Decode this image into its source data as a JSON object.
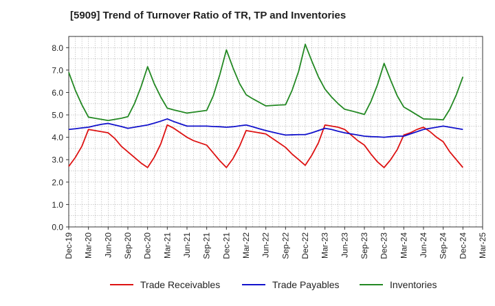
{
  "chart_data": {
    "type": "line",
    "title": "[5909]  Trend of Turnover Ratio of TR, TP and Inventories",
    "xlabel": "",
    "ylabel": "",
    "ylim": [
      0,
      8.5
    ],
    "yticks": [
      "0.0",
      "1.0",
      "2.0",
      "3.0",
      "4.0",
      "5.0",
      "6.0",
      "7.0",
      "8.0"
    ],
    "x_ticks": [
      "Dec-19",
      "Mar-20",
      "Jun-20",
      "Sep-20",
      "Dec-20",
      "Mar-21",
      "Jun-21",
      "Sep-21",
      "Dec-21",
      "Mar-22",
      "Jun-22",
      "Sep-22",
      "Dec-22",
      "Mar-23",
      "Jun-23",
      "Sep-23",
      "Dec-23",
      "Mar-24",
      "Jun-24",
      "Sep-24",
      "Dec-24",
      "Mar-25"
    ],
    "x": [
      "Dec-19",
      "Jan-20",
      "Feb-20",
      "Mar-20",
      "Apr-20",
      "May-20",
      "Jun-20",
      "Jul-20",
      "Aug-20",
      "Sep-20",
      "Oct-20",
      "Nov-20",
      "Dec-20",
      "Jan-21",
      "Feb-21",
      "Mar-21",
      "Apr-21",
      "May-21",
      "Jun-21",
      "Jul-21",
      "Aug-21",
      "Sep-21",
      "Oct-21",
      "Nov-21",
      "Dec-21",
      "Jan-22",
      "Feb-22",
      "Mar-22",
      "Apr-22",
      "May-22",
      "Jun-22",
      "Jul-22",
      "Aug-22",
      "Sep-22",
      "Oct-22",
      "Nov-22",
      "Dec-22",
      "Jan-23",
      "Feb-23",
      "Mar-23",
      "Apr-23",
      "May-23",
      "Jun-23",
      "Jul-23",
      "Aug-23",
      "Sep-23",
      "Oct-23",
      "Nov-23",
      "Dec-23",
      "Jan-24",
      "Feb-24",
      "Mar-24",
      "Apr-24",
      "May-24",
      "Jun-24",
      "Jul-24",
      "Aug-24",
      "Sep-24",
      "Oct-24",
      "Nov-24",
      "Dec-24"
    ],
    "series": [
      {
        "name": "Trade Receivables",
        "color": "#dd1111",
        "values": [
          2.7,
          3.1,
          3.6,
          4.35,
          4.3,
          4.25,
          4.2,
          3.95,
          3.6,
          3.35,
          3.1,
          2.85,
          2.65,
          3.1,
          3.7,
          4.55,
          4.4,
          4.2,
          4.0,
          3.85,
          3.75,
          3.65,
          3.3,
          2.95,
          2.65,
          3.05,
          3.6,
          4.3,
          4.25,
          4.2,
          4.15,
          3.95,
          3.75,
          3.55,
          3.25,
          3.0,
          2.75,
          3.2,
          3.75,
          4.55,
          4.5,
          4.45,
          4.35,
          4.1,
          3.85,
          3.65,
          3.25,
          2.9,
          2.65,
          3.0,
          3.45,
          4.1,
          4.2,
          4.35,
          4.45,
          4.25,
          4.0,
          3.8,
          3.35,
          3.0,
          2.65
        ]
      },
      {
        "name": "Trade Payables",
        "color": "#1111cc",
        "values": [
          4.35,
          4.38,
          4.42,
          4.45,
          4.52,
          4.58,
          4.62,
          4.55,
          4.48,
          4.4,
          4.45,
          4.5,
          4.55,
          4.63,
          4.72,
          4.82,
          4.7,
          4.6,
          4.5,
          4.5,
          4.5,
          4.5,
          4.48,
          4.47,
          4.45,
          4.47,
          4.51,
          4.55,
          4.47,
          4.38,
          4.3,
          4.23,
          4.16,
          4.1,
          4.11,
          4.12,
          4.12,
          4.2,
          4.3,
          4.4,
          4.35,
          4.27,
          4.2,
          4.15,
          4.1,
          4.05,
          4.03,
          4.02,
          4.0,
          4.03,
          4.05,
          4.05,
          4.15,
          4.25,
          4.35,
          4.4,
          4.45,
          4.5,
          4.45,
          4.4,
          4.35
        ]
      },
      {
        "name": "Inventories",
        "color": "#228822",
        "values": [
          6.9,
          6.1,
          5.45,
          4.9,
          4.85,
          4.8,
          4.75,
          4.8,
          4.85,
          4.92,
          5.5,
          6.25,
          7.15,
          6.4,
          5.8,
          5.3,
          5.22,
          5.15,
          5.08,
          5.12,
          5.16,
          5.2,
          5.85,
          6.8,
          7.9,
          7.1,
          6.4,
          5.9,
          5.72,
          5.56,
          5.4,
          5.42,
          5.44,
          5.45,
          6.1,
          6.95,
          8.15,
          7.4,
          6.7,
          6.15,
          5.8,
          5.5,
          5.25,
          5.18,
          5.1,
          5.02,
          5.6,
          6.35,
          7.3,
          6.55,
          5.85,
          5.35,
          5.18,
          5.0,
          4.82,
          4.81,
          4.8,
          4.78,
          5.25,
          5.9,
          6.7
        ]
      }
    ],
    "grid": true,
    "legend_position": "bottom"
  }
}
